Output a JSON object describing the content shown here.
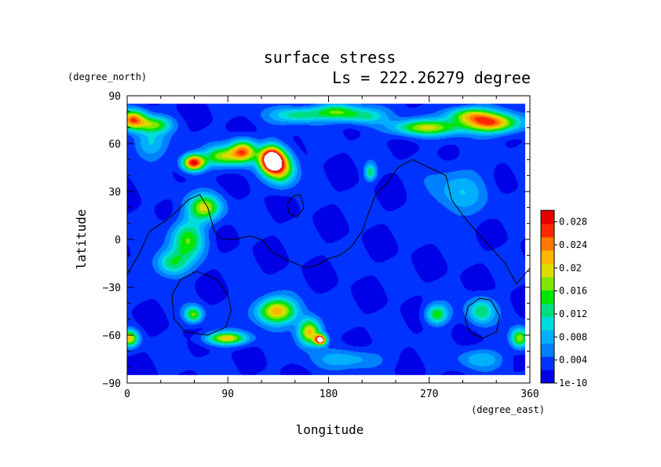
{
  "chart_data": {
    "type": "heatmap",
    "title": "surface stress",
    "subtitle": "Ls = 222.26279 degree",
    "xlabel": "longitude",
    "ylabel": "latitude",
    "x_units": "(degree_east)",
    "y_units": "(degree_north)",
    "xlim": [
      0,
      360
    ],
    "ylim": [
      -90,
      90
    ],
    "x_ticks": [
      "0",
      "90",
      "180",
      "270",
      "360"
    ],
    "y_ticks": [
      "90",
      "60",
      "30",
      "0",
      "−30",
      "−60",
      "−90"
    ],
    "x_tick_values": [
      0,
      90,
      180,
      270,
      360
    ],
    "y_tick_values": [
      90,
      60,
      30,
      0,
      -30,
      -60,
      -90
    ],
    "data_lat_range": [
      -85,
      85
    ],
    "colorbar": {
      "labels": [
        "0.028",
        "0.024",
        "0.02",
        "0.016",
        "0.012",
        "0.008",
        "0.004",
        "1e-10"
      ],
      "label_values": [
        0.028,
        0.024,
        0.02,
        0.016,
        0.012,
        0.008,
        0.004,
        0.0
      ],
      "max": 0.03,
      "background_value": 0.0025,
      "colors": [
        "#0000e6",
        "#0033ff",
        "#0080ff",
        "#00b0ff",
        "#00dcdc",
        "#00dc80",
        "#00e600",
        "#80e600",
        "#dcdc00",
        "#ffb400",
        "#ff7800",
        "#ff2800",
        "#e60000"
      ],
      "saturated_color": "#ffffff"
    },
    "features": [
      {
        "lon": 5,
        "lat": 75,
        "value": 0.022,
        "r_lon": 12,
        "r_lat": 6
      },
      {
        "lon": 25,
        "lat": 72,
        "value": 0.012,
        "r_lon": 15,
        "r_lat": 5
      },
      {
        "lon": 60,
        "lat": 48,
        "value": 0.027,
        "r_lon": 10,
        "r_lat": 5
      },
      {
        "lon": 85,
        "lat": 52,
        "value": 0.014,
        "r_lon": 15,
        "r_lat": 6
      },
      {
        "lon": 105,
        "lat": 55,
        "value": 0.022,
        "r_lon": 12,
        "r_lat": 7
      },
      {
        "lon": 130,
        "lat": 50,
        "value": 0.034,
        "r_lon": 10,
        "r_lat": 8
      },
      {
        "lon": 140,
        "lat": 45,
        "value": 0.018,
        "r_lon": 12,
        "r_lat": 10
      },
      {
        "lon": 155,
        "lat": 78,
        "value": 0.01,
        "r_lon": 25,
        "r_lat": 5
      },
      {
        "lon": 190,
        "lat": 80,
        "value": 0.012,
        "r_lon": 20,
        "r_lat": 5
      },
      {
        "lon": 215,
        "lat": 77,
        "value": 0.009,
        "r_lon": 20,
        "r_lat": 5
      },
      {
        "lon": 270,
        "lat": 70,
        "value": 0.016,
        "r_lon": 30,
        "r_lat": 5
      },
      {
        "lon": 310,
        "lat": 78,
        "value": 0.014,
        "r_lon": 20,
        "r_lat": 5
      },
      {
        "lon": 330,
        "lat": 73,
        "value": 0.022,
        "r_lon": 25,
        "r_lat": 6
      },
      {
        "lon": 220,
        "lat": 42,
        "value": 0.011,
        "r_lon": 5,
        "r_lat": 5
      },
      {
        "lon": 70,
        "lat": 20,
        "value": 0.016,
        "r_lon": 15,
        "r_lat": 8
      },
      {
        "lon": 55,
        "lat": 0,
        "value": 0.013,
        "r_lon": 15,
        "r_lat": 12
      },
      {
        "lon": 40,
        "lat": -15,
        "value": 0.011,
        "r_lon": 15,
        "r_lat": 8
      },
      {
        "lon": 20,
        "lat": 60,
        "value": 0.007,
        "r_lon": 15,
        "r_lat": 10
      },
      {
        "lon": 60,
        "lat": -47,
        "value": 0.014,
        "r_lon": 8,
        "r_lat": 5
      },
      {
        "lon": 90,
        "lat": -62,
        "value": 0.018,
        "r_lon": 18,
        "r_lat": 4
      },
      {
        "lon": 135,
        "lat": -45,
        "value": 0.02,
        "r_lon": 18,
        "r_lat": 8
      },
      {
        "lon": 165,
        "lat": -58,
        "value": 0.02,
        "r_lon": 10,
        "r_lat": 8
      },
      {
        "lon": 175,
        "lat": -63,
        "value": 0.03,
        "r_lon": 5,
        "r_lat": 3
      },
      {
        "lon": 2,
        "lat": -62,
        "value": 0.018,
        "r_lon": 8,
        "r_lat": 5
      },
      {
        "lon": 280,
        "lat": -47,
        "value": 0.013,
        "r_lon": 10,
        "r_lat": 6
      },
      {
        "lon": 320,
        "lat": -45,
        "value": 0.011,
        "r_lon": 12,
        "r_lat": 8
      },
      {
        "lon": 355,
        "lat": -62,
        "value": 0.016,
        "r_lon": 8,
        "r_lat": 6
      },
      {
        "lon": 300,
        "lat": 30,
        "value": 0.006,
        "r_lon": 25,
        "r_lat": 15
      },
      {
        "lon": 200,
        "lat": -75,
        "value": 0.006,
        "r_lon": 30,
        "r_lat": 6
      },
      {
        "lon": 320,
        "lat": -75,
        "value": 0.006,
        "r_lon": 20,
        "r_lat": 6
      }
    ],
    "contours": [
      {
        "name": "dichotomy-boundary",
        "points": [
          [
            0,
            -22
          ],
          [
            10,
            -10
          ],
          [
            20,
            5
          ],
          [
            35,
            12
          ],
          [
            45,
            18
          ],
          [
            55,
            25
          ],
          [
            65,
            28
          ],
          [
            72,
            20
          ],
          [
            78,
            5
          ],
          [
            85,
            0
          ],
          [
            95,
            0
          ],
          [
            110,
            2
          ],
          [
            120,
            0
          ],
          [
            130,
            -8
          ],
          [
            140,
            -12
          ],
          [
            150,
            -15
          ],
          [
            160,
            -18
          ],
          [
            170,
            -16
          ],
          [
            180,
            -12
          ],
          [
            190,
            -10
          ],
          [
            200,
            -5
          ],
          [
            210,
            5
          ],
          [
            215,
            15
          ],
          [
            222,
            28
          ],
          [
            232,
            35
          ],
          [
            242,
            45
          ],
          [
            255,
            50
          ],
          [
            270,
            45
          ],
          [
            285,
            40
          ],
          [
            290,
            25
          ],
          [
            300,
            15
          ],
          [
            312,
            5
          ],
          [
            325,
            -5
          ],
          [
            338,
            -15
          ],
          [
            348,
            -28
          ],
          [
            360,
            -18
          ]
        ]
      },
      {
        "name": "hellas-basin",
        "points": [
          [
            40,
            -35
          ],
          [
            48,
            -25
          ],
          [
            62,
            -20
          ],
          [
            80,
            -25
          ],
          [
            90,
            -35
          ],
          [
            93,
            -45
          ],
          [
            88,
            -55
          ],
          [
            72,
            -60
          ],
          [
            52,
            -58
          ],
          [
            42,
            -50
          ],
          [
            40,
            -35
          ]
        ]
      },
      {
        "name": "argyre-basin",
        "points": [
          [
            305,
            -42
          ],
          [
            315,
            -37
          ],
          [
            325,
            -38
          ],
          [
            333,
            -48
          ],
          [
            330,
            -58
          ],
          [
            318,
            -62
          ],
          [
            306,
            -58
          ],
          [
            302,
            -50
          ],
          [
            305,
            -42
          ]
        ]
      },
      {
        "name": "elysium-outline",
        "points": [
          [
            143,
            22
          ],
          [
            148,
            27
          ],
          [
            155,
            28
          ],
          [
            158,
            20
          ],
          [
            152,
            14
          ],
          [
            145,
            16
          ],
          [
            143,
            22
          ]
        ]
      }
    ]
  }
}
